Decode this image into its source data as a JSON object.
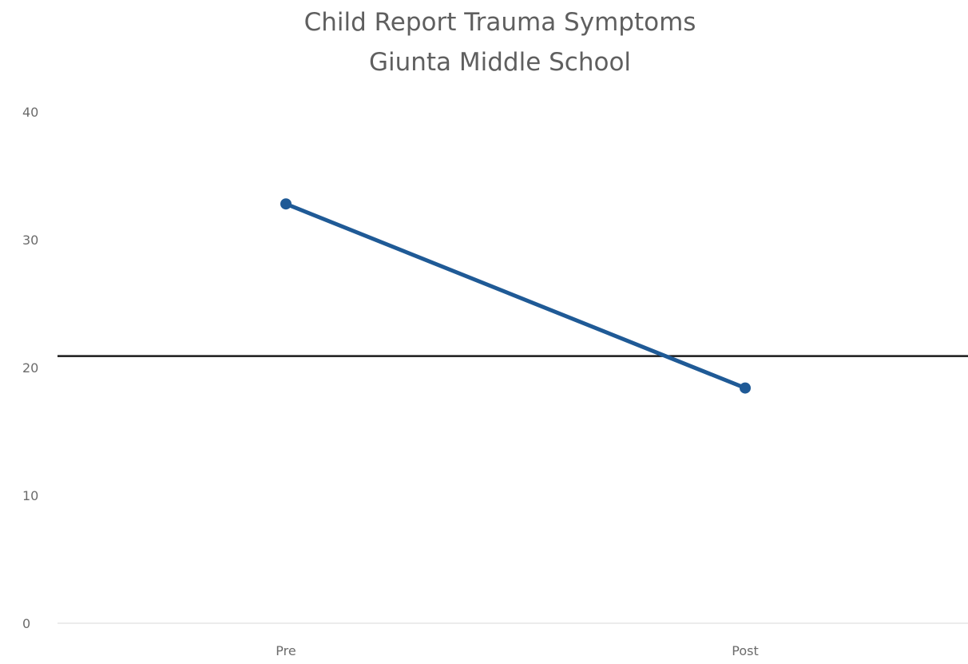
{
  "chart_data": {
    "type": "line",
    "title": "Child Report Trauma Symptoms",
    "subtitle": "Giunta Middle School",
    "xlabel": "",
    "ylabel": "",
    "categories": [
      "Pre",
      "Post"
    ],
    "series": [
      {
        "values": [
          32.8,
          18.4
        ],
        "color": "#1f5a96"
      }
    ],
    "reference_line": {
      "y": 20.9,
      "color": "#1a1a1a"
    },
    "ylim": [
      0,
      40
    ],
    "yticks": [
      0,
      10,
      20,
      30,
      40
    ],
    "grid": false,
    "legend": "none"
  }
}
